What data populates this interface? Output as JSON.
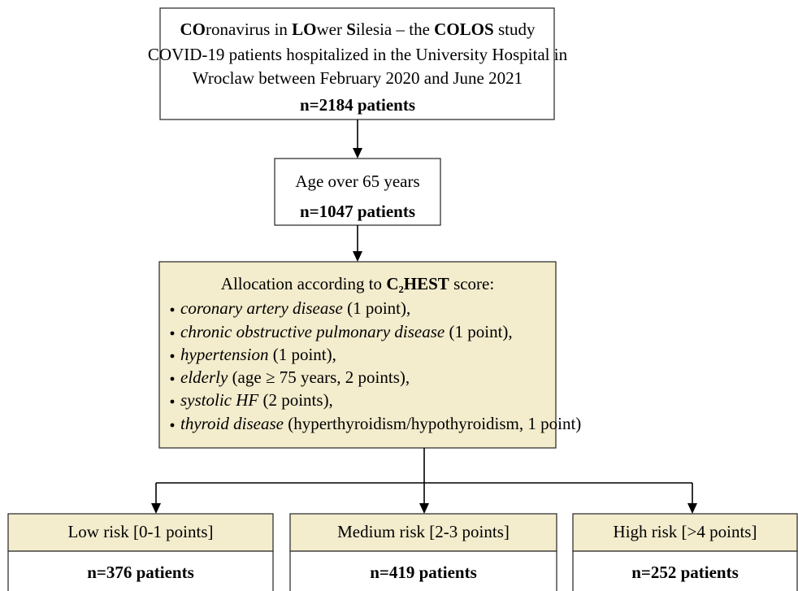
{
  "study_box": {
    "title_runs": [
      "CO",
      "ronavirus in ",
      "LO",
      "wer ",
      "S",
      "ilesia – the ",
      "COLOS",
      " study"
    ],
    "lines": [
      "COVID-19 patients hospitalized in the University Hospital in",
      "Wroclaw between February 2020 and June 2021"
    ],
    "count": "n=2184 patients"
  },
  "age_box": {
    "label": "Age over 65 years",
    "count": "n=1047 patients"
  },
  "allocation_box": {
    "title_runs": [
      "Allocation according to ",
      "C₂HEST",
      " score:"
    ],
    "bullets": [
      {
        "italic": "coronary artery disease",
        "text": " (1 point),"
      },
      {
        "italic": "chronic obstructive pulmonary disease",
        "text": " (1 point),"
      },
      {
        "italic": "hypertension",
        "text": " (1 point),"
      },
      {
        "italic": "elderly",
        "text": " (age ≥ 75 years, 2 points),"
      },
      {
        "italic": "systolic HF",
        "text": " (2 points),"
      },
      {
        "italic": "thyroid disease",
        "text": " (hyperthyroidism/hypothyroidism, 1 point)"
      }
    ]
  },
  "risk_groups": [
    {
      "label": "Low risk [0-1 points]",
      "count": "n=376 patients"
    },
    {
      "label": "Medium risk [2-3 points]",
      "count": "n=419 patients"
    },
    {
      "label": "High risk [>4 points]",
      "count": "n=252 patients"
    }
  ]
}
